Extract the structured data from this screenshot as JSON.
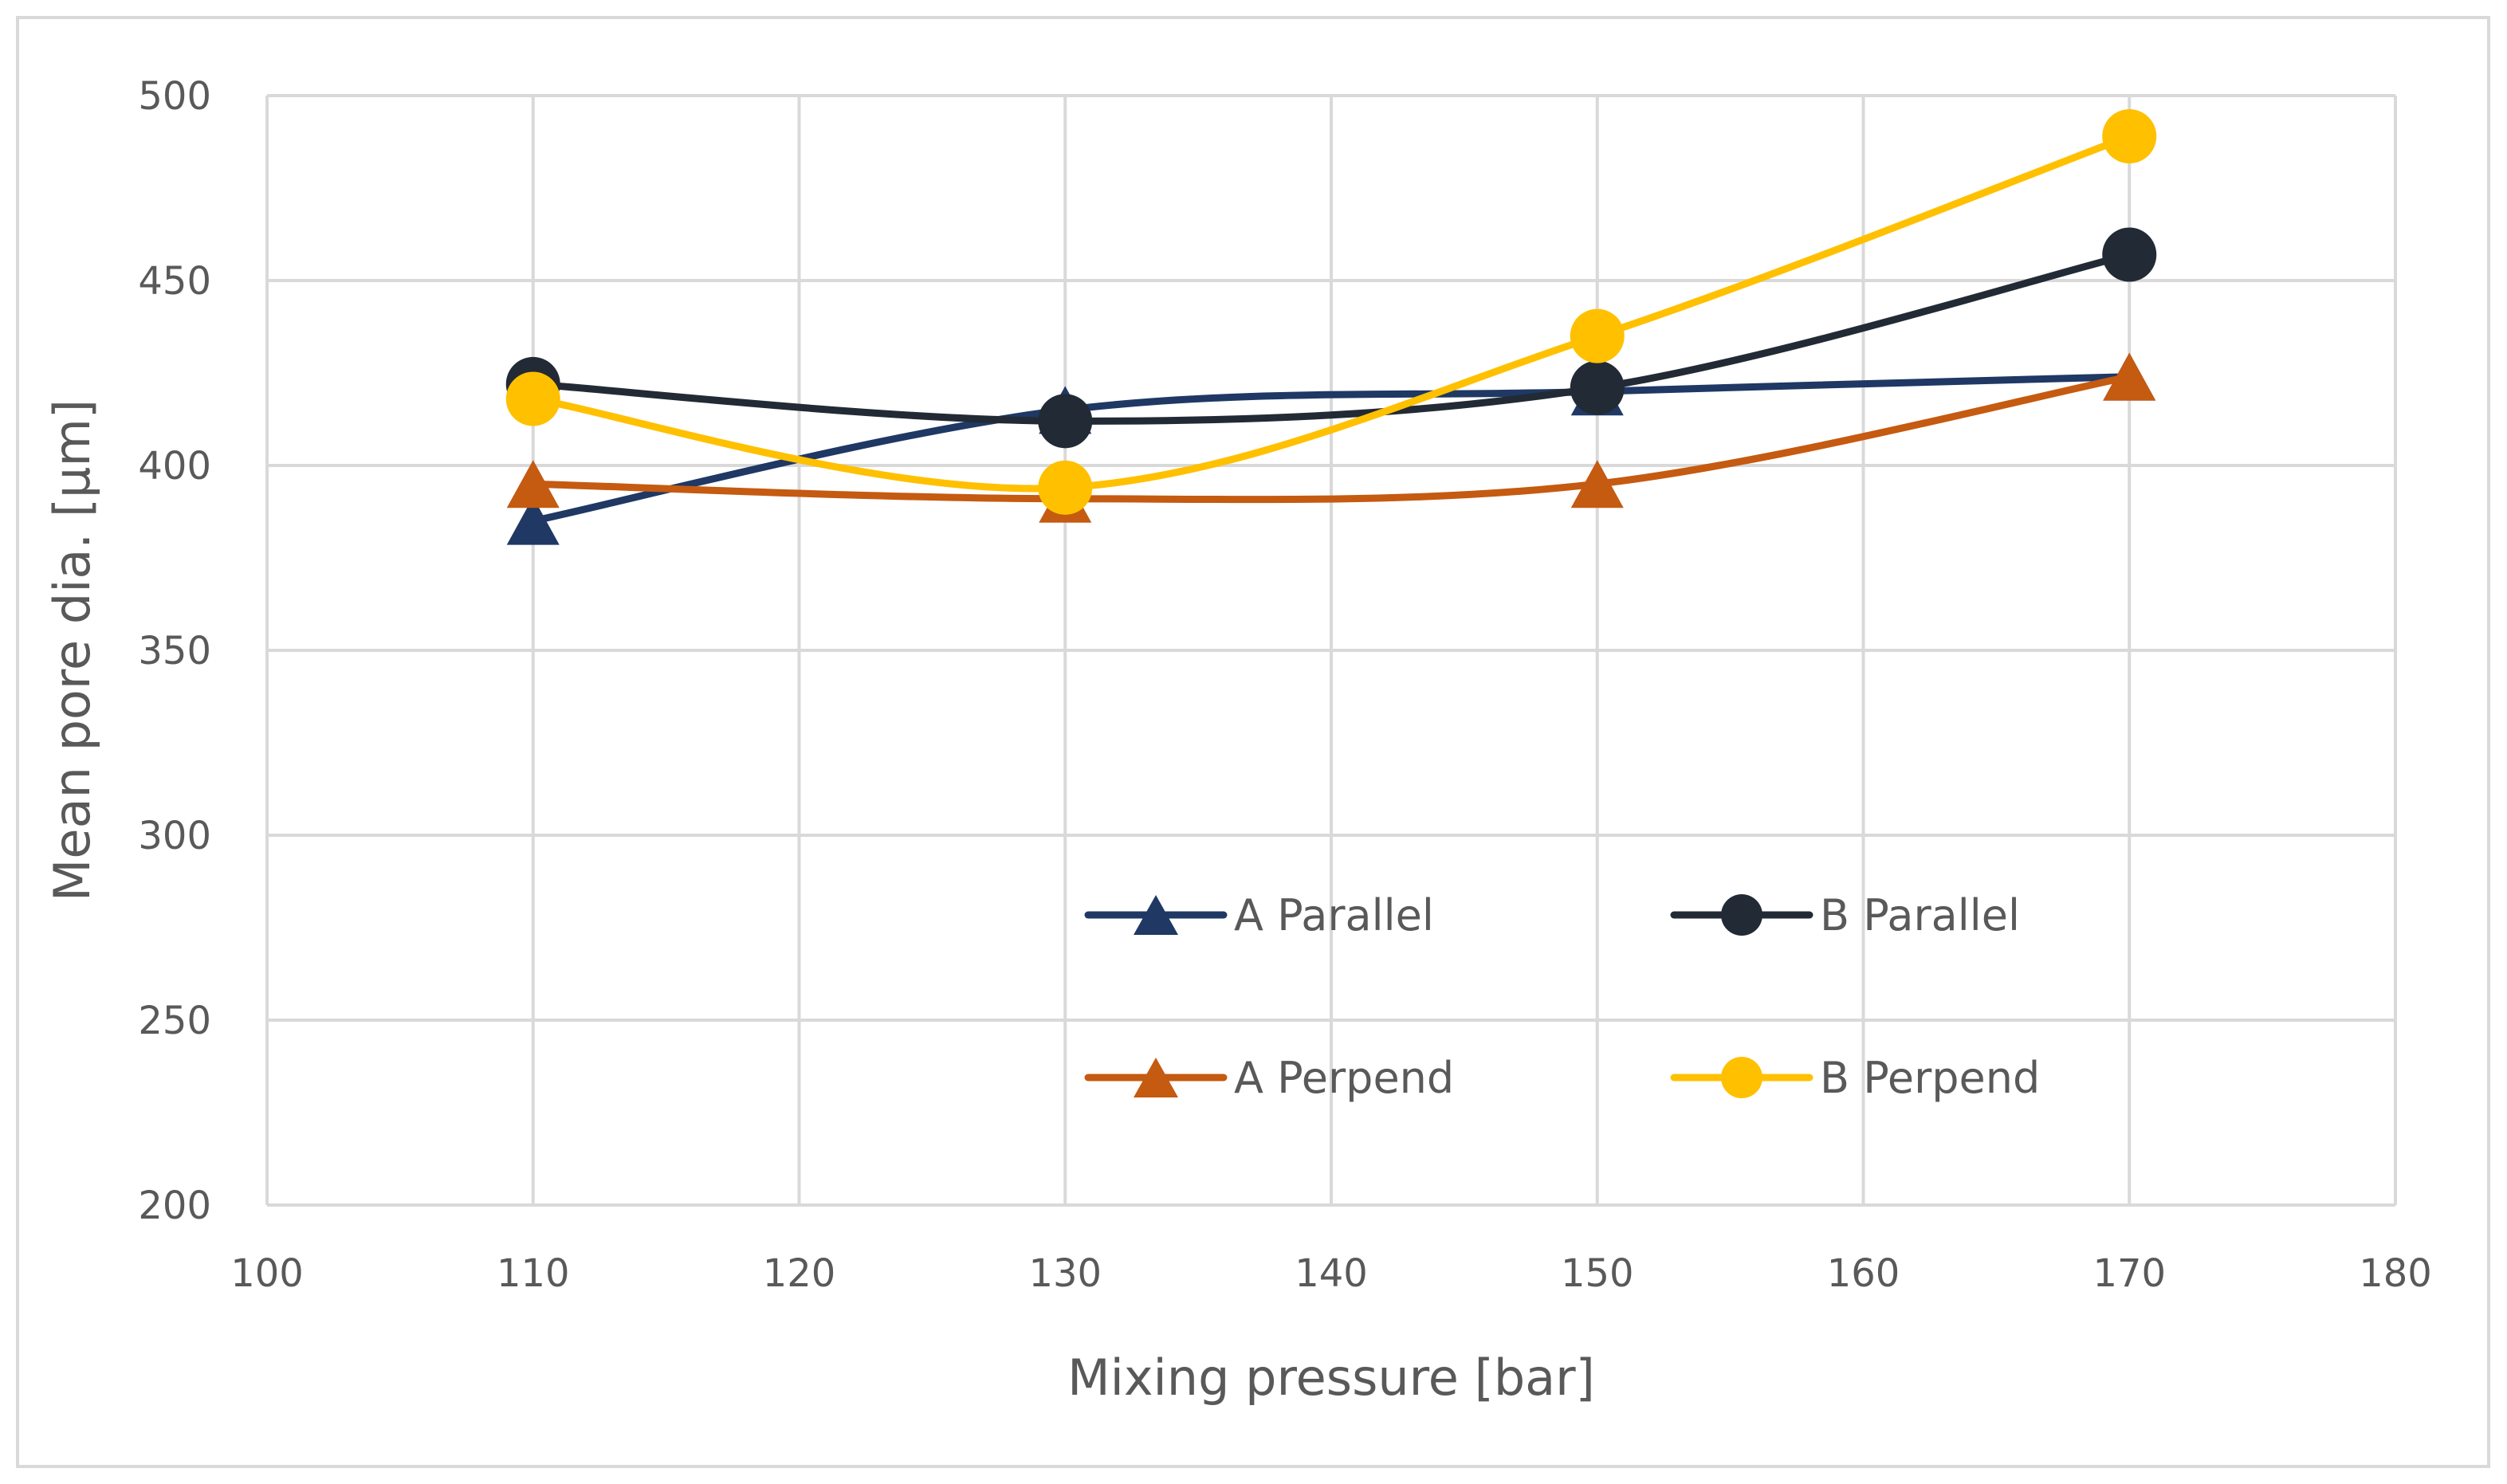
{
  "chart_data": {
    "type": "line",
    "title": "",
    "xlabel": "Mixing pressure [bar]",
    "ylabel": "Mean pore dia. [µm]",
    "xlim": [
      100,
      180
    ],
    "ylim": [
      200,
      500
    ],
    "xticks": [
      100,
      110,
      120,
      130,
      140,
      150,
      160,
      170,
      180
    ],
    "yticks": [
      200,
      250,
      300,
      350,
      400,
      450,
      500
    ],
    "grid": true,
    "legend_position": "inside-bottom-center",
    "series": [
      {
        "name": "A Parallel",
        "color": "#1F3864",
        "marker": "triangle",
        "x": [
          110,
          130,
          150,
          170
        ],
        "y": [
          385,
          415,
          420,
          424
        ]
      },
      {
        "name": "B Parallel",
        "color": "#222A35",
        "marker": "circle",
        "x": [
          110,
          130,
          150,
          170
        ],
        "y": [
          422,
          412,
          421,
          457
        ]
      },
      {
        "name": "A Perpend",
        "color": "#C55A11",
        "marker": "triangle",
        "x": [
          110,
          130,
          150,
          170
        ],
        "y": [
          395,
          391,
          395,
          424
        ]
      },
      {
        "name": "B Perpend",
        "color": "#FFC000",
        "marker": "circle",
        "x": [
          110,
          130,
          150,
          170
        ],
        "y": [
          418,
          394,
          435,
          489
        ]
      }
    ]
  }
}
